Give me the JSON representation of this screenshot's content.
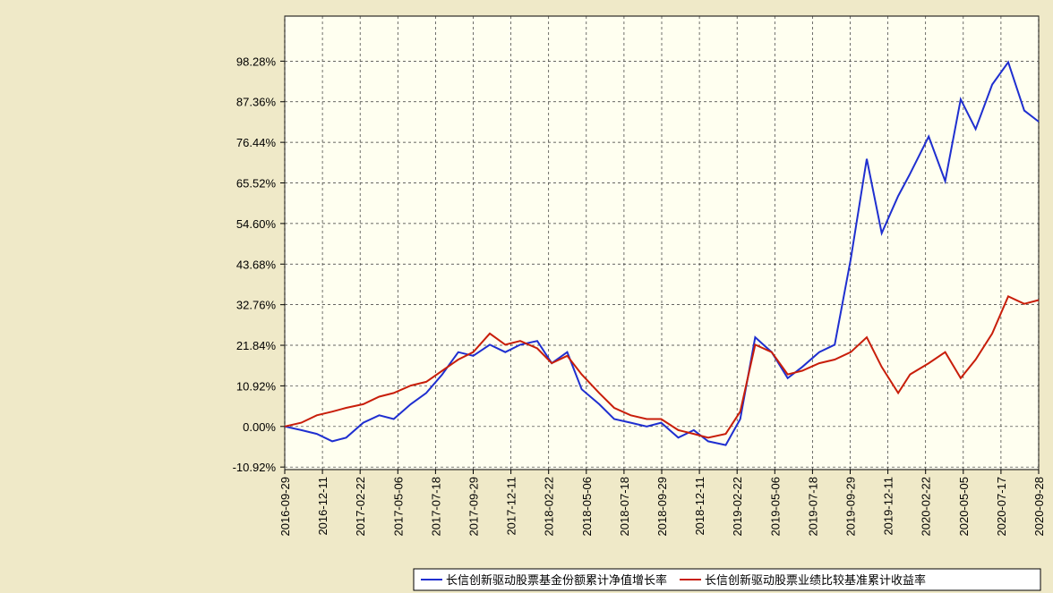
{
  "chart_data": {
    "type": "line",
    "x": [
      "2016-09-29",
      "2016-10-31",
      "2016-11-30",
      "2016-12-30",
      "2017-01-26",
      "2017-02-28",
      "2017-03-31",
      "2017-04-28",
      "2017-05-31",
      "2017-06-30",
      "2017-07-31",
      "2017-08-31",
      "2017-09-29",
      "2017-10-31",
      "2017-11-30",
      "2017-12-29",
      "2018-01-31",
      "2018-02-28",
      "2018-03-30",
      "2018-04-27",
      "2018-05-31",
      "2018-06-29",
      "2018-07-31",
      "2018-08-31",
      "2018-09-28",
      "2018-10-31",
      "2018-11-30",
      "2018-12-28",
      "2019-01-31",
      "2019-02-28",
      "2019-03-29",
      "2019-04-30",
      "2019-05-31",
      "2019-06-28",
      "2019-07-31",
      "2019-08-30",
      "2019-09-30",
      "2019-10-31",
      "2019-11-29",
      "2019-12-31",
      "2020-01-23",
      "2020-02-28",
      "2020-03-31",
      "2020-04-30",
      "2020-05-29",
      "2020-06-30",
      "2020-07-31",
      "2020-08-31",
      "2020-09-28"
    ],
    "series": [
      {
        "name": "长信创新驱动股票基金份额累计净值增长率",
        "color": "#1f2fd0",
        "values": [
          0,
          -1,
          -2,
          -4,
          -3,
          1,
          3,
          2,
          6,
          9,
          14,
          20,
          19,
          22,
          20,
          22,
          23,
          17,
          20,
          10,
          6,
          2,
          1,
          0,
          1,
          -3,
          -1,
          -4,
          -5,
          2,
          24,
          20,
          13,
          16,
          20,
          22,
          45,
          72,
          52,
          62,
          68,
          78,
          66,
          88,
          80,
          92,
          98,
          85,
          82
        ]
      },
      {
        "name": "长信创新驱动股票业绩比较基准累计收益率",
        "color": "#c81e0a",
        "values": [
          0,
          1,
          3,
          4,
          5,
          6,
          8,
          9,
          11,
          12,
          15,
          18,
          20,
          25,
          22,
          23,
          21,
          17,
          19,
          14,
          9,
          5,
          3,
          2,
          2,
          -1,
          -2,
          -3,
          -2,
          4,
          22,
          20,
          14,
          15,
          17,
          18,
          20,
          24,
          16,
          9,
          14,
          17,
          20,
          13,
          18,
          25,
          35,
          33,
          34
        ]
      }
    ],
    "xlim": [
      "2016-09-29",
      "2020-09-28"
    ],
    "xticks": [
      "2016-09-29",
      "2016-12-11",
      "2017-02-22",
      "2017-05-06",
      "2017-07-18",
      "2017-09-29",
      "2017-12-11",
      "2018-02-22",
      "2018-05-06",
      "2018-07-18",
      "2018-09-29",
      "2018-12-11",
      "2019-02-22",
      "2019-05-06",
      "2019-07-18",
      "2019-09-29",
      "2019-12-11",
      "2020-02-22",
      "2020-05-05",
      "2020-07-17",
      "2020-09-28"
    ],
    "ylim": [
      -11.6,
      110.4
    ],
    "yticks": [
      {
        "value": -10.92,
        "label": "-10.92%"
      },
      {
        "value": 0,
        "label": "0.00%"
      },
      {
        "value": 10.92,
        "label": "10.92%"
      },
      {
        "value": 21.84,
        "label": "21.84%"
      },
      {
        "value": 32.76,
        "label": "32.76%"
      },
      {
        "value": 43.68,
        "label": "43.68%"
      },
      {
        "value": 54.6,
        "label": "54.60%"
      },
      {
        "value": 65.52,
        "label": "65.52%"
      },
      {
        "value": 76.44,
        "label": "76.44%"
      },
      {
        "value": 87.36,
        "label": "87.36%"
      },
      {
        "value": 98.28,
        "label": "98.28%"
      }
    ],
    "grid": true
  }
}
